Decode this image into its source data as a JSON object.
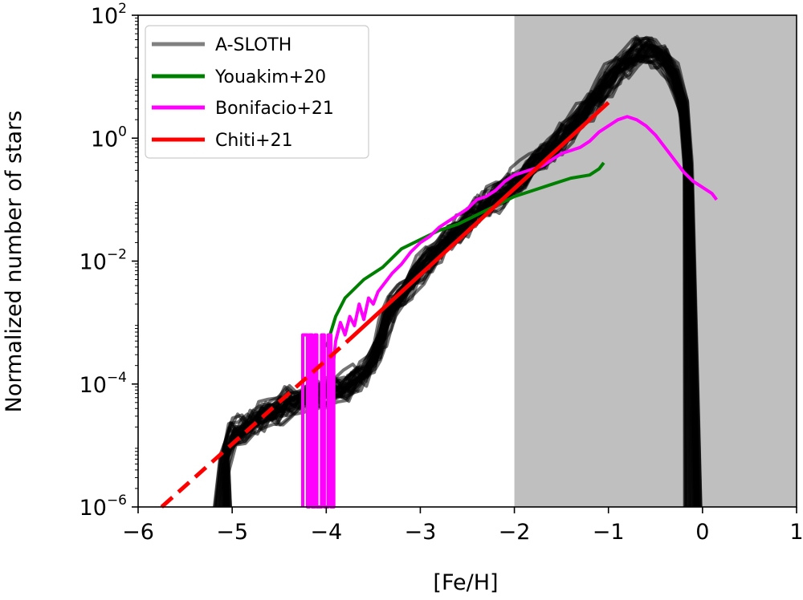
{
  "chart_data": {
    "type": "line",
    "title": "",
    "xlabel": "[Fe/H]",
    "ylabel": "Normalized number of stars",
    "xlim": [
      -6,
      1
    ],
    "ylim_log10": [
      -6,
      2
    ],
    "y_scale": "log",
    "x_ticks": [
      -6,
      -5,
      -4,
      -3,
      -2,
      -1,
      0,
      1
    ],
    "x_tick_labels": [
      "−6",
      "−5",
      "−4",
      "−3",
      "−2",
      "−1",
      "0",
      "1"
    ],
    "y_ticks_log10": [
      -6,
      -4,
      -2,
      0,
      2
    ],
    "y_tick_labels": [
      {
        "base": "10",
        "exp": "−6"
      },
      {
        "base": "10",
        "exp": "−4"
      },
      {
        "base": "10",
        "exp": "−2"
      },
      {
        "base": "10",
        "exp": "0"
      },
      {
        "base": "10",
        "exp": "2"
      }
    ],
    "shaded_region": {
      "x_from": -2,
      "x_to": 1,
      "color": "#bfbfbf"
    },
    "legend": {
      "placement": "top-left",
      "entries": [
        {
          "label": "A-SLOTH",
          "color": "#808080",
          "style": "solid"
        },
        {
          "label": "Youakim+20",
          "color": "#008000",
          "style": "solid"
        },
        {
          "label": "Bonifacio+21",
          "color": "#ff00ff",
          "style": "solid"
        },
        {
          "label": "Chiti+21",
          "color": "#ff0000",
          "style": "solid"
        }
      ]
    },
    "series": [
      {
        "name": "A-SLOTH (typical realization)",
        "color": "#000000",
        "note": "ensemble of ~30 overlapping semi-transparent realizations",
        "x": [
          -5.1,
          -5.08,
          -5.0,
          -4.9,
          -4.8,
          -4.7,
          -4.6,
          -4.5,
          -4.4,
          -4.3,
          -4.2,
          -4.1,
          -4.0,
          -3.9,
          -3.8,
          -3.7,
          -3.6,
          -3.5,
          -3.45,
          -3.4,
          -3.35,
          -3.3,
          -3.2,
          -3.1,
          -3.0,
          -2.9,
          -2.8,
          -2.7,
          -2.6,
          -2.5,
          -2.4,
          -2.3,
          -2.2,
          -2.1,
          -2.0,
          -1.9,
          -1.8,
          -1.7,
          -1.6,
          -1.5,
          -1.4,
          -1.3,
          -1.2,
          -1.1,
          -1.0,
          -0.9,
          -0.8,
          -0.7,
          -0.6,
          -0.5,
          -0.4,
          -0.3,
          -0.2,
          -0.15,
          -0.1
        ],
        "log10_y": [
          -6.0,
          -5.2,
          -4.8,
          -4.75,
          -4.65,
          -4.55,
          -4.45,
          -4.4,
          -4.3,
          -4.25,
          -4.2,
          -4.15,
          -4.15,
          -4.1,
          -4.05,
          -3.95,
          -3.85,
          -3.6,
          -3.4,
          -3.2,
          -2.9,
          -2.75,
          -2.55,
          -2.35,
          -2.15,
          -1.95,
          -1.8,
          -1.65,
          -1.5,
          -1.35,
          -1.2,
          -1.05,
          -0.95,
          -0.85,
          -0.75,
          -0.6,
          -0.45,
          -0.3,
          -0.15,
          0.0,
          0.15,
          0.35,
          0.55,
          0.75,
          0.95,
          1.1,
          1.25,
          1.4,
          1.45,
          1.4,
          1.3,
          1.0,
          0.5,
          -0.5,
          -6.0
        ]
      },
      {
        "name": "Youakim+20",
        "color": "#008000",
        "x": [
          -4.0,
          -3.9,
          -3.8,
          -3.7,
          -3.6,
          -3.5,
          -3.4,
          -3.3,
          -3.2,
          -3.0,
          -2.8,
          -2.6,
          -2.4,
          -2.2,
          -2.0,
          -1.8,
          -1.6,
          -1.4,
          -1.2,
          -1.1,
          -1.05
        ],
        "log10_y": [
          -3.4,
          -2.9,
          -2.6,
          -2.45,
          -2.3,
          -2.2,
          -2.1,
          -1.95,
          -1.8,
          -1.65,
          -1.5,
          -1.4,
          -1.25,
          -1.1,
          -0.95,
          -0.85,
          -0.75,
          -0.65,
          -0.6,
          -0.5,
          -0.4
        ]
      },
      {
        "name": "Bonifacio+21",
        "color": "#ff00ff",
        "x": [
          -4.25,
          -4.25,
          -4.2,
          -4.2,
          -4.18,
          -4.18,
          -4.15,
          -4.15,
          -4.12,
          -4.12,
          -4.1,
          -4.1,
          -4.05,
          -4.05,
          -4.02,
          -4.02,
          -3.98,
          -3.98,
          -3.95,
          -3.95,
          -3.92,
          -3.92,
          -3.9,
          -3.85,
          -3.8,
          -3.75,
          -3.7,
          -3.65,
          -3.6,
          -3.55,
          -3.5,
          -3.45,
          -3.4,
          -3.3,
          -3.2,
          -3.1,
          -3.0,
          -2.9,
          -2.8,
          -2.7,
          -2.6,
          -2.5,
          -2.4,
          -2.3,
          -2.2,
          -2.1,
          -2.0,
          -1.9,
          -1.8,
          -1.7,
          -1.6,
          -1.5,
          -1.4,
          -1.3,
          -1.2,
          -1.1,
          -1.0,
          -0.9,
          -0.8,
          -0.7,
          -0.6,
          -0.5,
          -0.4,
          -0.3,
          -0.2,
          -0.1,
          0.0,
          0.1,
          0.15
        ],
        "log10_y": [
          -6.0,
          -3.2,
          -3.2,
          -6.0,
          -6.0,
          -3.2,
          -3.2,
          -6.0,
          -6.0,
          -3.2,
          -3.2,
          -6.0,
          -6.0,
          -3.2,
          -3.2,
          -6.0,
          -6.0,
          -3.2,
          -3.2,
          -6.0,
          -6.0,
          -3.6,
          -3.3,
          -3.0,
          -3.2,
          -2.9,
          -3.05,
          -2.7,
          -2.95,
          -2.6,
          -2.7,
          -2.5,
          -2.4,
          -2.2,
          -2.05,
          -1.85,
          -1.7,
          -1.6,
          -1.45,
          -1.35,
          -1.25,
          -1.15,
          -1.0,
          -0.95,
          -0.85,
          -0.7,
          -0.6,
          -0.55,
          -0.5,
          -0.45,
          -0.35,
          -0.25,
          -0.2,
          -0.15,
          -0.05,
          0.1,
          0.2,
          0.3,
          0.35,
          0.3,
          0.2,
          0.05,
          -0.15,
          -0.35,
          -0.55,
          -0.7,
          -0.8,
          -0.9,
          -1.0
        ]
      },
      {
        "name": "Chiti+21",
        "color": "#ff0000",
        "segments": [
          {
            "style": "dashed",
            "x": [
              -5.75,
              -3.75
            ],
            "log10_y": [
              -6.0,
              -3.27
            ]
          },
          {
            "style": "solid",
            "x": [
              -3.75,
              -1.0
            ],
            "log10_y": [
              -3.27,
              0.58
            ]
          }
        ]
      }
    ]
  }
}
